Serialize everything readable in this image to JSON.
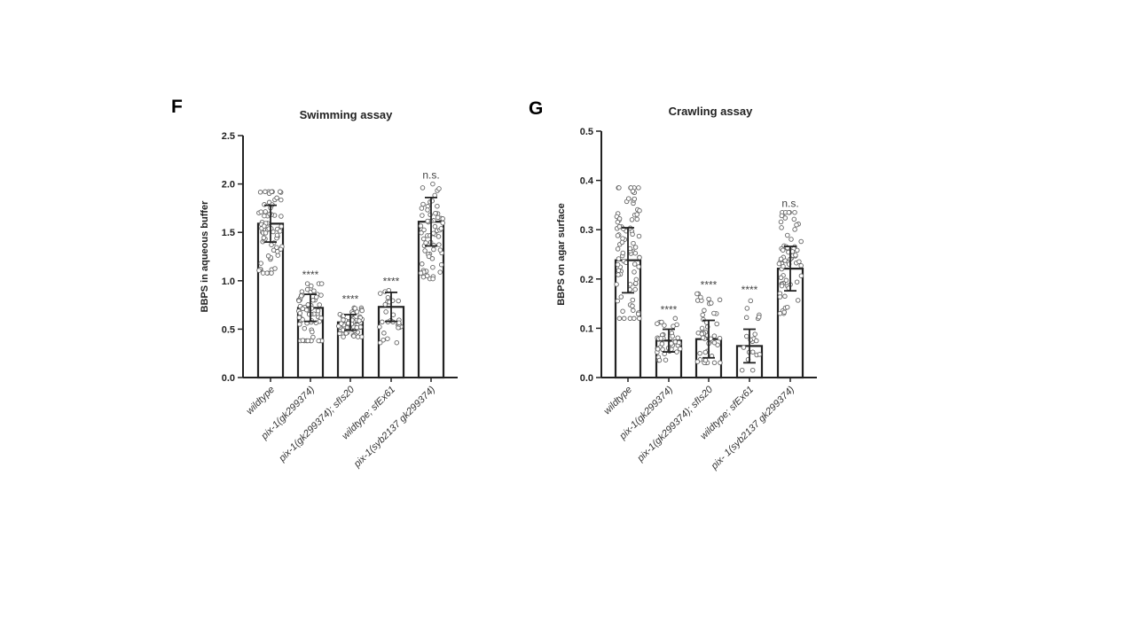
{
  "chart_data": [
    {
      "type": "bar",
      "panel": "F",
      "title": "Swimming assay",
      "ylabel": "BBPS in aqueous buffer",
      "xlabel": "",
      "ylim": [
        0,
        2.5
      ],
      "yticks": [
        "0.0",
        "0.5",
        "1.0",
        "1.5",
        "2.0",
        "2.5"
      ],
      "categories": [
        "wildtype",
        "pix-1(gk299374)",
        "pix-1(gk299374); sfIs20",
        "wildtype; sfEx61",
        "pix-1(syb2137 gk299374)"
      ],
      "values": [
        1.59,
        0.72,
        0.57,
        0.73,
        1.61
      ],
      "sd": [
        0.19,
        0.14,
        0.08,
        0.15,
        0.25
      ],
      "point_range": [
        [
          1.08,
          1.92
        ],
        [
          0.38,
          0.97
        ],
        [
          0.42,
          0.72
        ],
        [
          0.36,
          0.9
        ],
        [
          1.02,
          2.0
        ]
      ],
      "point_counts": [
        70,
        65,
        60,
        28,
        65
      ],
      "significance": [
        "",
        "****",
        "****",
        "****",
        "n.s."
      ],
      "grid": false
    },
    {
      "type": "bar",
      "panel": "G",
      "title": "Crawling assay",
      "ylabel": "BBPS on agar surface",
      "xlabel": "",
      "ylim": [
        0,
        0.5
      ],
      "yticks": [
        "0.0",
        "0.1",
        "0.2",
        "0.3",
        "0.4",
        "0.5"
      ],
      "categories": [
        "wildtype",
        "pix-1(gk299374)",
        "pix-1(gk299374); sfIs20",
        "wildtype; sfEx61",
        "pix- 1(syb2137 gk299374)"
      ],
      "values": [
        0.238,
        0.075,
        0.078,
        0.064,
        0.221
      ],
      "sd": [
        0.066,
        0.023,
        0.038,
        0.034,
        0.045
      ],
      "point_range": [
        [
          0.12,
          0.385
        ],
        [
          0.035,
          0.12
        ],
        [
          0.03,
          0.17
        ],
        [
          0.015,
          0.16
        ],
        [
          0.13,
          0.335
        ]
      ],
      "point_counts": [
        85,
        40,
        45,
        20,
        70
      ],
      "significance": [
        "",
        "****",
        "****",
        "****",
        "n.s."
      ],
      "grid": false
    }
  ]
}
